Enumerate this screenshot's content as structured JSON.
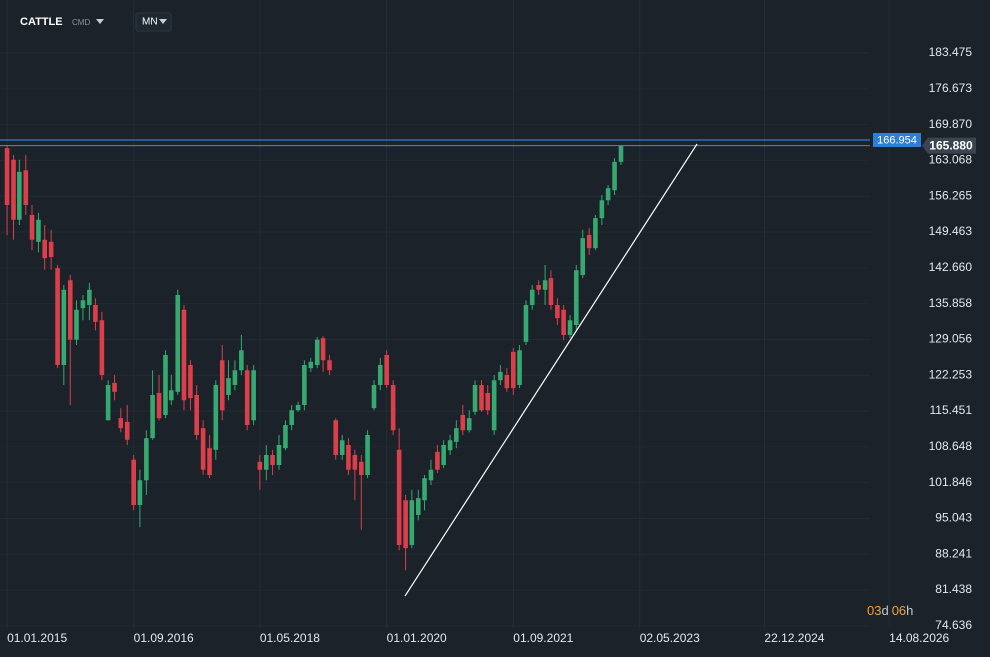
{
  "toolbar": {
    "symbol": "CATTLE",
    "exchange": "CMD",
    "interval": "MN"
  },
  "countdown": {
    "days": "03",
    "day_unit": "d",
    "hours": "06",
    "hour_unit": "h"
  },
  "chart_data": {
    "type": "candlestick",
    "up_color": "#35a96f",
    "down_color": "#dc3f4a",
    "grid": true,
    "xlim": [
      "28.11.2014",
      "12.12.2027"
    ],
    "xticks": [
      "01.01.2015",
      "01.09.2016",
      "01.05.2018",
      "01.01.2020",
      "01.09.2021",
      "02.05.2023",
      "22.12.2024",
      "14.08.2026"
    ],
    "ylim": [
      74.23,
      186.9
    ],
    "yticks": [
      183.475,
      176.673,
      {
        "value": 169.87,
        "label": "169.870"
      },
      163.068,
      156.265,
      149.463,
      {
        "value": 142.66,
        "label": "142.660"
      },
      135.858,
      129.056,
      122.253,
      115.451,
      108.648,
      101.846,
      95.043,
      88.241,
      81.438,
      74.636
    ],
    "x": [
      "01.01.2015",
      "01.02.2015",
      "01.03.2015",
      "01.04.2015",
      "01.05.2015",
      "01.06.2015",
      "01.07.2015",
      "01.08.2015",
      "01.09.2015",
      "01.10.2015",
      "01.11.2015",
      "01.12.2015",
      "01.01.2016",
      "01.02.2016",
      "01.03.2016",
      "01.04.2016",
      "01.05.2016",
      "01.06.2016",
      "01.07.2016",
      "01.08.2016",
      "01.09.2016",
      "01.10.2016",
      "01.11.2016",
      "01.12.2016",
      "01.01.2017",
      "01.02.2017",
      "01.03.2017",
      "01.04.2017",
      "01.05.2017",
      "01.06.2017",
      "01.07.2017",
      "01.08.2017",
      "01.09.2017",
      "01.10.2017",
      "01.11.2017",
      "01.12.2017",
      "01.01.2018",
      "01.02.2018",
      "01.03.2018",
      "01.04.2018",
      "01.05.2018",
      "01.06.2018",
      "01.07.2018",
      "01.08.2018",
      "01.09.2018",
      "01.10.2018",
      "01.11.2018",
      "01.12.2018",
      "01.01.2019",
      "01.02.2019",
      "01.03.2019",
      "01.04.2019",
      "01.05.2019",
      "01.06.2019",
      "01.07.2019",
      "01.08.2019",
      "01.09.2019",
      "01.10.2019",
      "01.11.2019",
      "01.12.2019",
      "01.01.2020",
      "01.02.2020",
      "01.03.2020",
      "01.04.2020",
      "01.05.2020",
      "01.06.2020",
      "01.07.2020",
      "01.08.2020",
      "01.09.2020",
      "01.10.2020",
      "01.11.2020",
      "01.12.2020",
      "01.01.2021",
      "01.02.2021",
      "01.03.2021",
      "01.04.2021",
      "01.05.2021",
      "01.06.2021",
      "01.07.2021",
      "01.08.2021",
      "01.09.2021",
      "01.10.2021",
      "01.11.2021",
      "01.12.2021",
      "01.01.2022",
      "01.02.2022",
      "01.03.2022",
      "01.04.2022",
      "01.05.2022",
      "01.06.2022",
      "01.07.2022",
      "01.08.2022",
      "01.09.2022",
      "01.10.2022",
      "01.11.2022",
      "01.12.2022",
      "01.01.2023",
      "01.02.2023"
    ],
    "open": [
      165.4,
      163.2,
      151.8,
      161.2,
      152.7,
      147.6,
      148,
      147.6,
      142.6,
      124.2,
      140.3,
      129,
      135,
      135.6,
      135.6,
      132.7,
      113.7,
      120.8,
      114.1,
      113.4,
      106.2,
      97.6,
      102.3,
      110.3,
      118.9,
      114.7,
      117.5,
      119.1,
      134.7,
      124.2,
      118.5,
      112.2,
      108.4,
      108.1,
      125.1,
      118.5,
      120.4,
      123.2,
      123.2,
      113.7,
      105.8,
      104.3,
      107.1,
      105.2,
      108.4,
      112.8,
      115.6,
      116.6,
      123.6,
      124.2,
      129.3,
      125.1,
      113.7,
      107.1,
      109,
      107.1,
      105.8,
      103.3,
      116,
      120.4,
      126.1,
      120.4,
      108.1,
      98.5,
      90,
      95.7,
      98.5,
      102.3,
      107.7,
      105.2,
      108,
      109.6,
      114.7,
      111.8,
      115.3,
      120.4,
      118.9,
      111.8,
      121.3,
      122.3,
      126.7,
      120.4,
      128.6,
      135.6,
      139.4,
      138.5,
      140.7,
      135.6,
      134.7,
      129.9,
      131.8,
      141.3,
      148.9,
      146.4,
      152.1,
      155.5,
      157.4,
      162.8
    ],
    "high": [
      166,
      164.1,
      163.2,
      164.1,
      154.6,
      153.1,
      150.8,
      149.9,
      143.2,
      139.4,
      141.3,
      136.5,
      137.5,
      139.8,
      136.9,
      134.3,
      121.3,
      122.3,
      116,
      116.6,
      107.1,
      104.3,
      111.8,
      123.2,
      122.3,
      127,
      122.3,
      138.5,
      135.6,
      125.1,
      120.4,
      113.7,
      110.9,
      121.3,
      128,
      125.1,
      125.1,
      129.9,
      124.2,
      124.2,
      107.1,
      109,
      108.1,
      110.9,
      113.7,
      116.6,
      117.2,
      125.1,
      125.5,
      129.5,
      129.7,
      126.1,
      114.1,
      110.9,
      110.3,
      108.1,
      107.1,
      111.8,
      121.3,
      125.5,
      127,
      121.3,
      112.2,
      99.5,
      100.5,
      100.5,
      103.3,
      106.2,
      109,
      109.9,
      110.9,
      113.7,
      116.6,
      115.6,
      121.3,
      121.3,
      120.4,
      122.3,
      124.2,
      123.6,
      127.4,
      128,
      136.5,
      139.4,
      140.3,
      143.2,
      142.2,
      136.9,
      135.6,
      133.7,
      143.2,
      149.9,
      150.2,
      152.7,
      156.5,
      158.4,
      163.5,
      166
    ],
    "low": [
      148.9,
      148,
      150.8,
      152.7,
      146,
      145.6,
      142.3,
      142.3,
      123.6,
      120.4,
      116.6,
      128,
      132.7,
      132.7,
      130.8,
      121.3,
      113.7,
      117.5,
      111.4,
      109,
      96.6,
      93.4,
      99.5,
      110,
      113.7,
      114.1,
      116.6,
      118.5,
      115.6,
      115.6,
      110,
      103.3,
      102.7,
      106.2,
      113.7,
      117.5,
      119.4,
      122.3,
      111.8,
      112.8,
      100.5,
      102.3,
      103.3,
      104.3,
      108,
      111.8,
      115.3,
      115.6,
      122.9,
      123.6,
      122.9,
      122.3,
      106.2,
      106.2,
      103.3,
      98.5,
      92.9,
      102.7,
      115.6,
      119.4,
      119.8,
      110.9,
      89,
      85.2,
      89.4,
      94.7,
      96.6,
      101.4,
      103.7,
      104.6,
      107.1,
      108.4,
      110.9,
      111.4,
      114.7,
      115.3,
      114.7,
      110.9,
      120.4,
      119.1,
      118.5,
      119.8,
      128,
      134.7,
      137.5,
      135.6,
      134.7,
      131.8,
      128.9,
      129.3,
      130.8,
      140.7,
      145.1,
      146,
      150.8,
      154.6,
      156.5,
      162.2
    ],
    "close": [
      154.6,
      151.8,
      160.9,
      154.6,
      148,
      151.8,
      144.5,
      144.7,
      124.2,
      138.5,
      129,
      134.7,
      136.5,
      138.5,
      132.4,
      122.3,
      120.4,
      119.1,
      112.2,
      110,
      97.6,
      102.3,
      110.3,
      118.5,
      114.1,
      126.1,
      119.4,
      137.5,
      117.5,
      117.9,
      110.9,
      104.3,
      103.3,
      120.4,
      115.6,
      121.7,
      123.2,
      127,
      112.8,
      123.2,
      104.3,
      107.1,
      105.2,
      109,
      112.8,
      115.6,
      116.6,
      124.2,
      124.8,
      129,
      125.1,
      123.2,
      107.1,
      109.9,
      104.3,
      104.3,
      103.3,
      110.9,
      120.4,
      124.2,
      120.4,
      111.8,
      90,
      89.4,
      98.5,
      98.9,
      102.7,
      104.3,
      104.3,
      109,
      109.9,
      112.2,
      111.8,
      114.1,
      120.4,
      115.6,
      115.6,
      121.3,
      122.9,
      119.8,
      119.8,
      127,
      135.6,
      138.5,
      138.5,
      140.3,
      135.6,
      133.1,
      129.9,
      132.7,
      142.2,
      148.3,
      146.4,
      152.1,
      155.5,
      157.8,
      162.8,
      165.88
    ],
    "hline": {
      "value": 166.954,
      "color": "#2d7fd6"
    },
    "price_line": {
      "value": 165.88,
      "label": "165.880",
      "color": "#5b86b0"
    },
    "trendline": {
      "x": [
        "29.03.2020",
        "02.02.2024"
      ],
      "y": [
        80.3,
        166.2
      ],
      "color": "#ffffff"
    }
  }
}
